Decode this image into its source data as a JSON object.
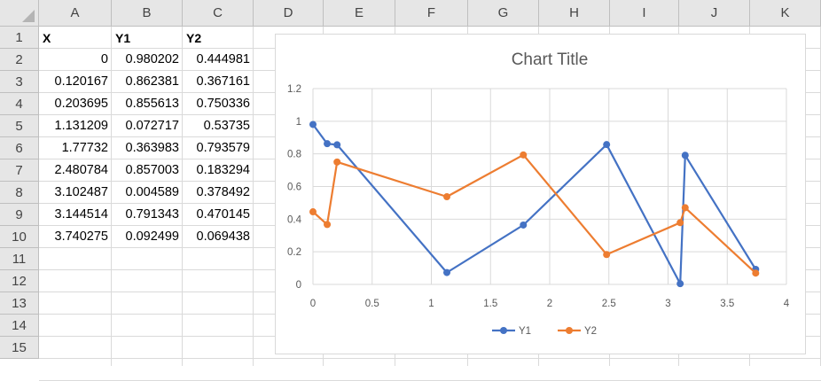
{
  "columns": [
    "A",
    "B",
    "C",
    "D",
    "E",
    "F",
    "G",
    "H",
    "I",
    "J",
    "K"
  ],
  "rows": [
    "1",
    "2",
    "3",
    "4",
    "5",
    "6",
    "7",
    "8",
    "9",
    "10",
    "11",
    "12",
    "13",
    "14",
    "15"
  ],
  "table": {
    "headers": [
      "X",
      "Y1",
      "Y2"
    ],
    "rows": [
      [
        "0",
        "0.980202",
        "0.444981"
      ],
      [
        "0.120167",
        "0.862381",
        "0.367161"
      ],
      [
        "0.203695",
        "0.855613",
        "0.750336"
      ],
      [
        "1.131209",
        "0.072717",
        "0.53735"
      ],
      [
        "1.77732",
        "0.363983",
        "0.793579"
      ],
      [
        "2.480784",
        "0.857003",
        "0.183294"
      ],
      [
        "3.102487",
        "0.004589",
        "0.378492"
      ],
      [
        "3.144514",
        "0.791343",
        "0.470145"
      ],
      [
        "3.740275",
        "0.092499",
        "0.069438"
      ]
    ]
  },
  "chart_data": {
    "type": "scatter",
    "title": "Chart Title",
    "xlabel": "",
    "ylabel": "",
    "xlim": [
      0,
      4
    ],
    "ylim": [
      0,
      1.2
    ],
    "xticks": [
      "0",
      "0.5",
      "1",
      "1.5",
      "2",
      "2.5",
      "3",
      "3.5",
      "4"
    ],
    "yticks": [
      "0",
      "0.2",
      "0.4",
      "0.6",
      "0.8",
      "1",
      "1.2"
    ],
    "grid": true,
    "legend": "bottom",
    "x": [
      0,
      0.120167,
      0.203695,
      1.131209,
      1.77732,
      2.480784,
      3.102487,
      3.144514,
      3.740275
    ],
    "series": [
      {
        "name": "Y1",
        "color": "#4472c4",
        "values": [
          0.980202,
          0.862381,
          0.855613,
          0.072717,
          0.363983,
          0.857003,
          0.004589,
          0.791343,
          0.092499
        ]
      },
      {
        "name": "Y2",
        "color": "#ed7d31",
        "values": [
          0.444981,
          0.367161,
          0.750336,
          0.53735,
          0.793579,
          0.183294,
          0.378492,
          0.470145,
          0.069438
        ]
      }
    ]
  }
}
